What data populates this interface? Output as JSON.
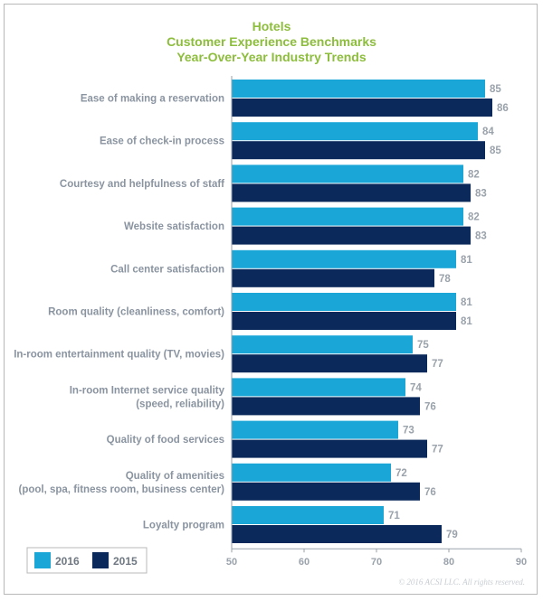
{
  "chart_data": {
    "type": "bar",
    "orientation": "horizontal",
    "title": [
      "Hotels",
      "Customer Experience Benchmarks",
      "Year-Over-Year Industry Trends"
    ],
    "categories": [
      [
        "Ease of making a reservation"
      ],
      [
        "Ease of check-in process"
      ],
      [
        "Courtesy and helpfulness of staff"
      ],
      [
        "Website satisfaction"
      ],
      [
        "Call center satisfaction"
      ],
      [
        "Room quality (cleanliness, comfort)"
      ],
      [
        "In-room entertainment quality (TV, movies)"
      ],
      [
        "In-room Internet service quality",
        "(speed, reliability)"
      ],
      [
        "Quality of food services"
      ],
      [
        "Quality of amenities",
        "(pool, spa, fitness room, business center)"
      ],
      [
        "Loyalty program"
      ]
    ],
    "series": [
      {
        "name": "2016",
        "color": "#1ba6d8",
        "values": [
          85,
          84,
          82,
          82,
          81,
          81,
          75,
          74,
          73,
          72,
          71
        ]
      },
      {
        "name": "2015",
        "color": "#0b2a5b",
        "values": [
          86,
          85,
          83,
          83,
          78,
          81,
          77,
          76,
          77,
          76,
          79
        ]
      }
    ],
    "xlim": [
      50,
      90
    ],
    "xticks": [
      50,
      60,
      70,
      80,
      90
    ],
    "xlabel": "",
    "ylabel": "",
    "legend_position": "bottom-left",
    "grid": false
  },
  "copyright": "© 2016 ACSI LLC. All rights reserved."
}
